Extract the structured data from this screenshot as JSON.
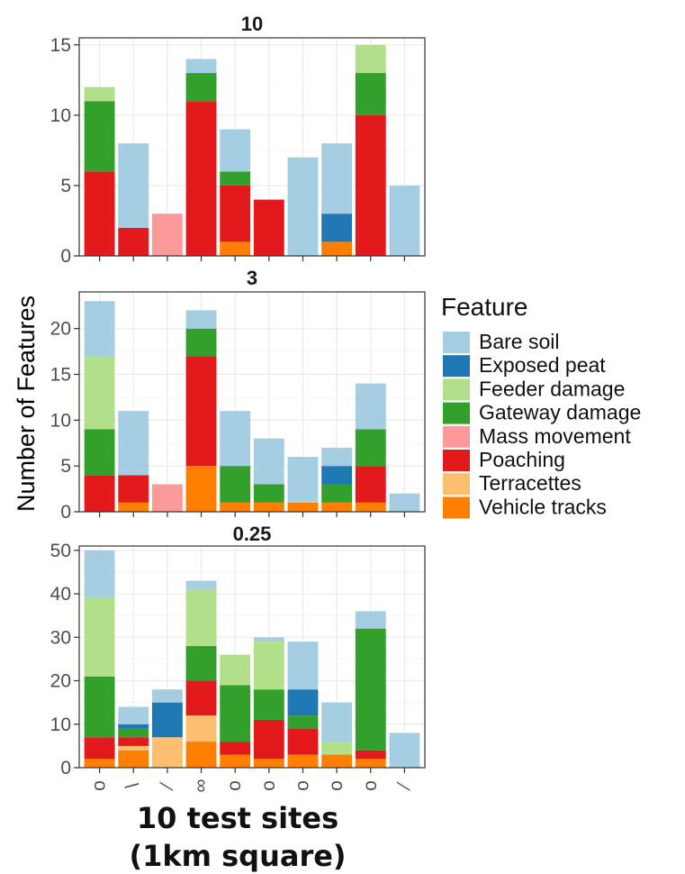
{
  "chart_data": {
    "type": "bar",
    "stacked": true,
    "ylabel": "Number of Features",
    "xlabel": "10 test sites",
    "xlabel_line2": "(1km square)",
    "legend": {
      "title": "Feature",
      "placement": "right",
      "entries": [
        {
          "name": "Bare soil",
          "color": "#a6cee3"
        },
        {
          "name": "Exposed peat",
          "color": "#1f78b4"
        },
        {
          "name": "Feeder damage",
          "color": "#b2df8a"
        },
        {
          "name": "Gateway damage",
          "color": "#33a02c"
        },
        {
          "name": "Mass movement",
          "color": "#fb9a99"
        },
        {
          "name": "Poaching",
          "color": "#e31a1c"
        },
        {
          "name": "Terracettes",
          "color": "#fdbf6f"
        },
        {
          "name": "Vehicle tracks",
          "color": "#ff7f00"
        }
      ]
    },
    "stack_order": [
      "Vehicle tracks",
      "Terracettes",
      "Poaching",
      "Mass movement",
      "Gateway damage",
      "Feeder damage",
      "Exposed peat",
      "Bare soil"
    ],
    "x_tick_labels": [
      "o",
      "\\",
      "⁄",
      "∞",
      "o",
      "o",
      "o",
      "o",
      "o",
      "⁄"
    ],
    "panels": [
      {
        "title": "10",
        "ylim": [
          0,
          15.5
        ],
        "yticks": [
          0,
          5,
          10,
          15
        ],
        "grid": true,
        "sites": [
          {
            "Poaching": 6,
            "Gateway damage": 5,
            "Feeder damage": 1
          },
          {
            "Poaching": 2,
            "Bare soil": 6
          },
          {
            "Mass movement": 3
          },
          {
            "Poaching": 11,
            "Gateway damage": 2,
            "Bare soil": 1
          },
          {
            "Vehicle tracks": 1,
            "Poaching": 4,
            "Gateway damage": 1,
            "Bare soil": 3
          },
          {
            "Poaching": 4
          },
          {
            "Bare soil": 7
          },
          {
            "Vehicle tracks": 1,
            "Exposed peat": 2,
            "Bare soil": 5
          },
          {
            "Poaching": 10,
            "Gateway damage": 3,
            "Feeder damage": 2
          },
          {
            "Bare soil": 5
          }
        ]
      },
      {
        "title": "3",
        "ylim": [
          0,
          24
        ],
        "yticks": [
          0,
          5,
          10,
          15,
          20
        ],
        "grid": true,
        "sites": [
          {
            "Poaching": 4,
            "Gateway damage": 5,
            "Feeder damage": 8,
            "Bare soil": 6
          },
          {
            "Vehicle tracks": 1,
            "Poaching": 3,
            "Bare soil": 7
          },
          {
            "Mass movement": 3
          },
          {
            "Vehicle tracks": 5,
            "Poaching": 12,
            "Gateway damage": 3,
            "Bare soil": 2
          },
          {
            "Vehicle tracks": 1,
            "Gateway damage": 4,
            "Bare soil": 6
          },
          {
            "Vehicle tracks": 1,
            "Gateway damage": 2,
            "Bare soil": 5
          },
          {
            "Vehicle tracks": 1,
            "Bare soil": 5
          },
          {
            "Vehicle tracks": 1,
            "Gateway damage": 2,
            "Exposed peat": 2,
            "Bare soil": 2
          },
          {
            "Vehicle tracks": 1,
            "Poaching": 4,
            "Gateway damage": 4,
            "Bare soil": 5
          },
          {
            "Bare soil": 2
          }
        ]
      },
      {
        "title": "0.25",
        "ylim": [
          0,
          51
        ],
        "yticks": [
          0,
          10,
          20,
          30,
          40,
          50
        ],
        "grid": true,
        "sites": [
          {
            "Vehicle tracks": 2,
            "Poaching": 5,
            "Gateway damage": 14,
            "Feeder damage": 18,
            "Bare soil": 11
          },
          {
            "Vehicle tracks": 4,
            "Terracettes": 1,
            "Poaching": 2,
            "Gateway damage": 2,
            "Exposed peat": 1,
            "Bare soil": 4
          },
          {
            "Terracettes": 7,
            "Exposed peat": 8,
            "Bare soil": 3
          },
          {
            "Vehicle tracks": 6,
            "Terracettes": 6,
            "Poaching": 8,
            "Gateway damage": 8,
            "Feeder damage": 13,
            "Bare soil": 2
          },
          {
            "Vehicle tracks": 3,
            "Poaching": 3,
            "Gateway damage": 13,
            "Feeder damage": 7
          },
          {
            "Vehicle tracks": 2,
            "Poaching": 9,
            "Gateway damage": 7,
            "Feeder damage": 11,
            "Bare soil": 1
          },
          {
            "Vehicle tracks": 3,
            "Poaching": 6,
            "Gateway damage": 3,
            "Exposed peat": 6,
            "Bare soil": 11
          },
          {
            "Vehicle tracks": 3,
            "Feeder damage": 3,
            "Bare soil": 9
          },
          {
            "Vehicle tracks": 2,
            "Poaching": 2,
            "Gateway damage": 28,
            "Bare soil": 4
          },
          {
            "Bare soil": 8
          }
        ]
      }
    ]
  }
}
